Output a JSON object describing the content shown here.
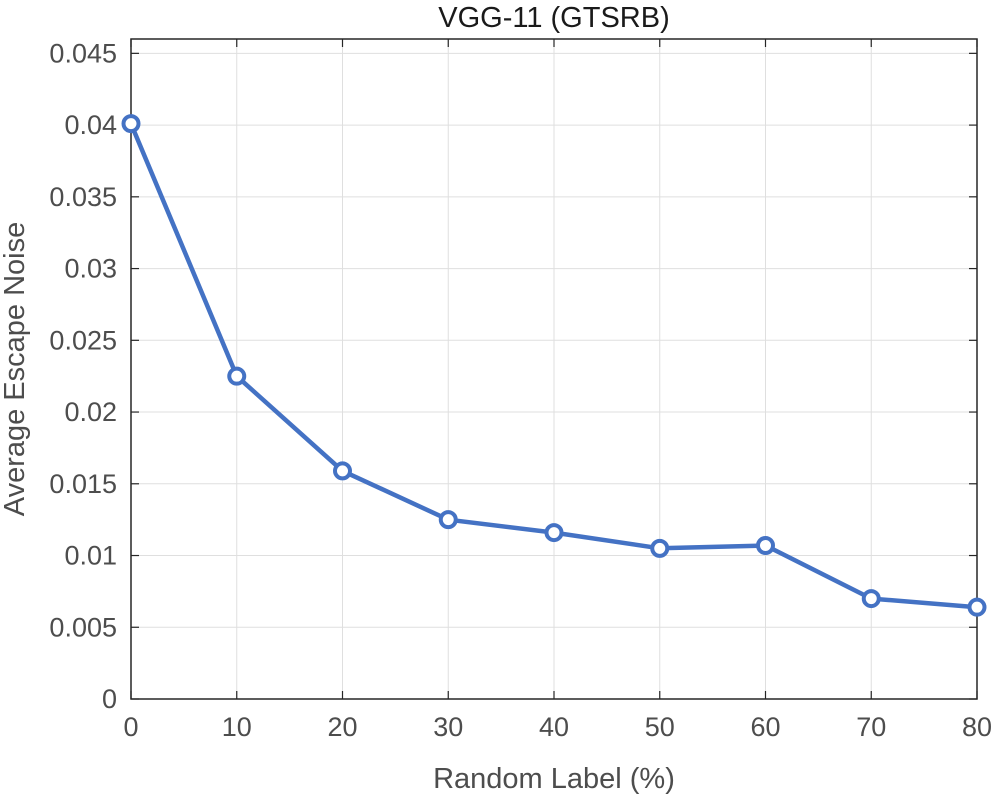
{
  "chart_data": {
    "type": "line",
    "title": "VGG-11 (GTSRB)",
    "xlabel": "Random Label (%)",
    "ylabel": "Average Escape Noise",
    "xlim": [
      0,
      80
    ],
    "ylim": [
      0,
      0.046
    ],
    "grid": true,
    "x_ticks": [
      0,
      10,
      20,
      30,
      40,
      50,
      60,
      70,
      80
    ],
    "x_tick_labels": [
      "0",
      "10",
      "20",
      "30",
      "40",
      "50",
      "60",
      "70",
      "80"
    ],
    "y_ticks": [
      0,
      0.005,
      0.01,
      0.015,
      0.02,
      0.025,
      0.03,
      0.035,
      0.04,
      0.045
    ],
    "y_tick_labels": [
      "0",
      "0.005",
      "0.01",
      "0.015",
      "0.02",
      "0.025",
      "0.03",
      "0.035",
      "0.04",
      "0.045"
    ],
    "series": [
      {
        "name": "VGG-11 (GTSRB)",
        "color": "#4472c4",
        "x": [
          0,
          10,
          20,
          30,
          40,
          50,
          60,
          70,
          80
        ],
        "values": [
          0.0401,
          0.0225,
          0.0159,
          0.0125,
          0.0116,
          0.0105,
          0.0107,
          0.007,
          0.0064
        ]
      }
    ]
  }
}
